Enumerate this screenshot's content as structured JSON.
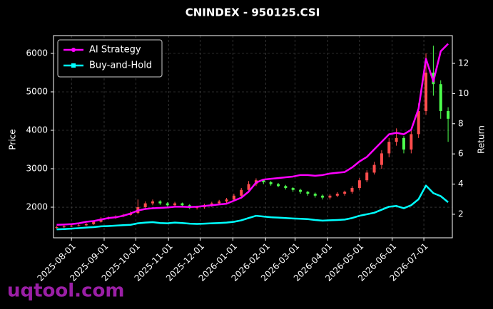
{
  "chart_data": {
    "type": "candlestick",
    "title": "CNINDEX - 950125.CSI",
    "ylabel": "Price",
    "y2label": "Return",
    "watermark": "uqtool.com",
    "x": [
      "2025-07-18",
      "2025-07-25",
      "2025-08-01",
      "2025-08-08",
      "2025-08-15",
      "2025-08-22",
      "2025-08-29",
      "2025-09-05",
      "2025-09-12",
      "2025-09-19",
      "2025-09-26",
      "2025-10-03",
      "2025-10-10",
      "2025-10-17",
      "2025-10-24",
      "2025-10-31",
      "2025-11-07",
      "2025-11-14",
      "2025-11-21",
      "2025-11-28",
      "2025-12-05",
      "2025-12-12",
      "2025-12-19",
      "2025-12-26",
      "2026-01-02",
      "2026-01-09",
      "2026-01-16",
      "2026-01-23",
      "2026-01-30",
      "2026-02-06",
      "2026-02-13",
      "2026-02-20",
      "2026-02-27",
      "2026-03-06",
      "2026-03-13",
      "2026-03-20",
      "2026-03-27",
      "2026-04-03",
      "2026-04-10",
      "2026-04-17",
      "2026-04-24",
      "2026-05-01",
      "2026-05-08",
      "2026-05-15",
      "2026-05-22",
      "2026-05-29",
      "2026-06-05",
      "2026-06-12",
      "2026-06-19",
      "2026-06-26",
      "2026-07-03",
      "2026-07-10",
      "2026-07-17",
      "2026-07-24"
    ],
    "open": [
      1460,
      1480,
      1500,
      1520,
      1530,
      1560,
      1620,
      1700,
      1720,
      1760,
      1800,
      1850,
      2000,
      2100,
      2150,
      2100,
      2050,
      2100,
      2050,
      1980,
      2000,
      2050,
      2100,
      2150,
      2200,
      2300,
      2450,
      2600,
      2700,
      2650,
      2600,
      2550,
      2500,
      2450,
      2400,
      2350,
      2300,
      2250,
      2300,
      2350,
      2400,
      2500,
      2700,
      2900,
      3100,
      3400,
      3700,
      3800,
      3500,
      3900,
      4500,
      5500,
      5200,
      4500
    ],
    "high": [
      1510,
      1530,
      1550,
      1560,
      1590,
      1650,
      1740,
      1760,
      1790,
      1830,
      1890,
      2200,
      2150,
      2200,
      2180,
      2130,
      2140,
      2120,
      2080,
      2040,
      2090,
      2140,
      2190,
      2240,
      2350,
      2500,
      2680,
      2750,
      2740,
      2680,
      2630,
      2580,
      2520,
      2480,
      2420,
      2380,
      2330,
      2340,
      2390,
      2430,
      2550,
      2760,
      2960,
      3180,
      3480,
      3800,
      4050,
      3850,
      4000,
      4700,
      6000,
      6200,
      5300,
      4600
    ],
    "low": [
      1440,
      1460,
      1480,
      1500,
      1510,
      1540,
      1600,
      1680,
      1700,
      1740,
      1780,
      1820,
      1950,
      2050,
      2060,
      2020,
      2010,
      2010,
      1950,
      1940,
      1960,
      2010,
      2060,
      2110,
      2150,
      2250,
      2400,
      2550,
      2600,
      2560,
      2520,
      2460,
      2400,
      2350,
      2300,
      2250,
      2200,
      2200,
      2260,
      2300,
      2350,
      2450,
      2650,
      2850,
      3000,
      3300,
      3600,
      3400,
      3400,
      3800,
      4400,
      4900,
      4300,
      3700
    ],
    "close": [
      1480,
      1500,
      1520,
      1530,
      1560,
      1620,
      1700,
      1720,
      1760,
      1800,
      1850,
      2000,
      2100,
      2150,
      2100,
      2050,
      2100,
      2050,
      1980,
      2000,
      2050,
      2100,
      2150,
      2200,
      2300,
      2450,
      2600,
      2700,
      2650,
      2600,
      2550,
      2500,
      2450,
      2400,
      2350,
      2300,
      2250,
      2300,
      2350,
      2400,
      2500,
      2700,
      2900,
      3100,
      3400,
      3700,
      3800,
      3500,
      3900,
      4500,
      5500,
      5200,
      4500,
      4300
    ],
    "up_color": "#ff4d4d",
    "down_color": "#4dff4d",
    "series": [
      {
        "name": "AI Strategy",
        "color": "#ff00ff",
        "marker": "circle",
        "axis": "y2",
        "values": [
          1.3,
          1.32,
          1.35,
          1.4,
          1.5,
          1.55,
          1.65,
          1.75,
          1.8,
          1.9,
          2.05,
          2.25,
          2.35,
          2.4,
          2.42,
          2.45,
          2.5,
          2.5,
          2.48,
          2.5,
          2.55,
          2.6,
          2.65,
          2.7,
          2.9,
          3.1,
          3.5,
          4.1,
          4.3,
          4.35,
          4.4,
          4.45,
          4.5,
          4.6,
          4.6,
          4.55,
          4.6,
          4.7,
          4.75,
          4.8,
          5.1,
          5.5,
          5.8,
          6.3,
          6.8,
          7.3,
          7.4,
          7.3,
          7.6,
          9.0,
          12.3,
          10.8,
          12.8,
          13.3
        ]
      },
      {
        "name": "Buy-and-Hold",
        "color": "#00ffff",
        "marker": "square",
        "axis": "y2",
        "values": [
          1.0,
          1.02,
          1.05,
          1.08,
          1.12,
          1.15,
          1.2,
          1.22,
          1.25,
          1.28,
          1.3,
          1.4,
          1.45,
          1.48,
          1.42,
          1.4,
          1.45,
          1.42,
          1.38,
          1.36,
          1.38,
          1.4,
          1.42,
          1.45,
          1.5,
          1.6,
          1.75,
          1.9,
          1.85,
          1.8,
          1.78,
          1.75,
          1.72,
          1.7,
          1.68,
          1.62,
          1.58,
          1.6,
          1.62,
          1.65,
          1.75,
          1.9,
          2.0,
          2.1,
          2.3,
          2.5,
          2.55,
          2.4,
          2.6,
          3.0,
          3.9,
          3.4,
          3.2,
          2.8
        ]
      }
    ],
    "xlim": [
      "2025-07-15",
      "2026-07-28"
    ],
    "xticks": [
      "2025-08-01",
      "2025-09-01",
      "2025-10-01",
      "2025-11-01",
      "2025-12-01",
      "2026-01-01",
      "2026-02-01",
      "2026-03-01",
      "2026-04-01",
      "2026-05-01",
      "2026-06-01",
      "2026-07-01"
    ],
    "ylim": [
      1204,
      6463
    ],
    "yticks": [
      2000,
      3000,
      4000,
      5000,
      6000
    ],
    "y2lim": [
      0.44,
      13.84
    ],
    "y2ticks": [
      2,
      4,
      6,
      8,
      10,
      12
    ],
    "grid": true,
    "legend": "upper left"
  }
}
